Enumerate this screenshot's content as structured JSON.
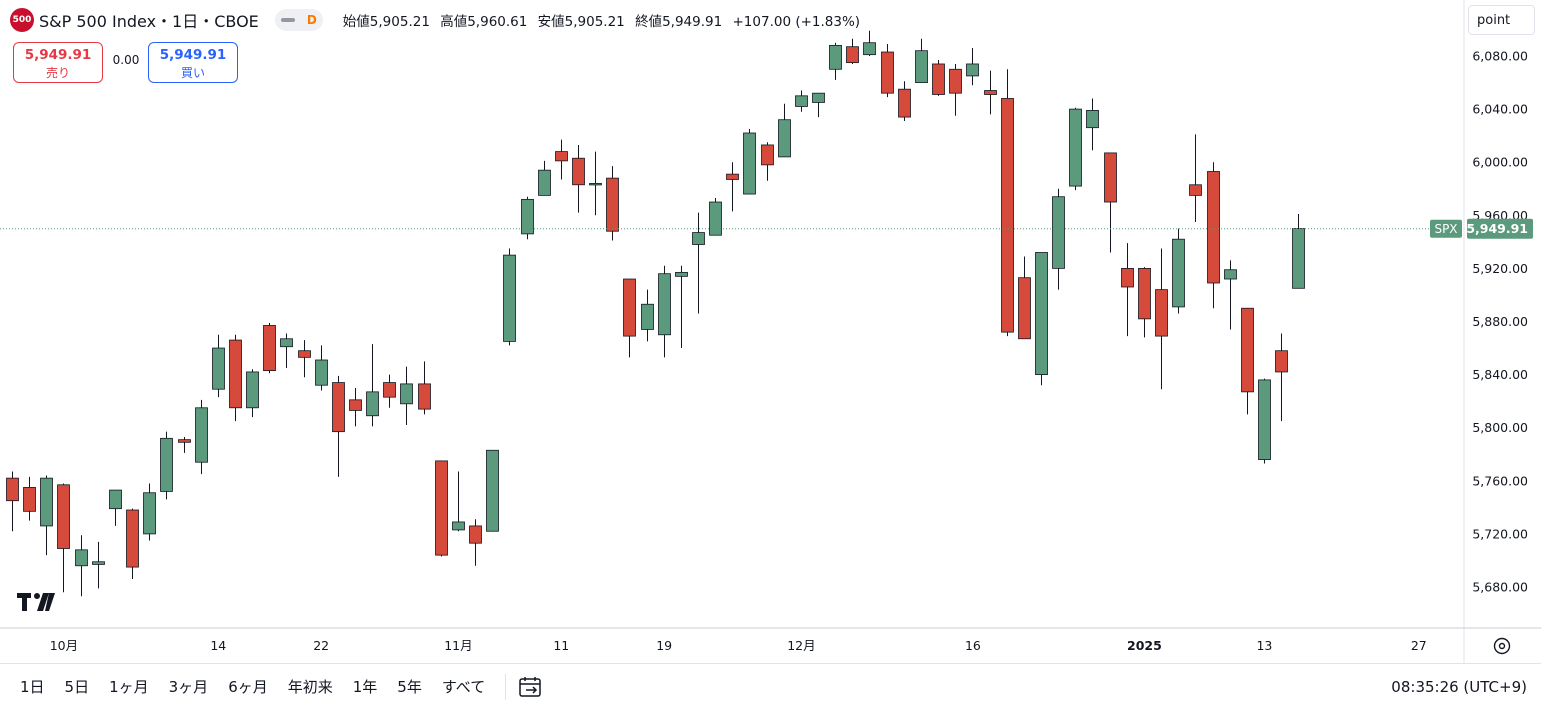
{
  "header": {
    "symbol_badge": "500",
    "title": "S&P 500 Index・1日・CBOE",
    "timeframe_letter": "D",
    "ohlc": {
      "open_label": "始値",
      "open": "5,905.21",
      "high_label": "高値",
      "high": "5,960.61",
      "low_label": "安値",
      "low": "5,905.21",
      "close_label": "終値",
      "close": "5,949.91",
      "change": "+107.00 (+1.83%)"
    }
  },
  "trade": {
    "sell_price": "5,949.91",
    "sell_label": "売り",
    "spread": "0.00",
    "buy_price": "5,949.91",
    "buy_label": "買い"
  },
  "scale_mode": "point",
  "colors": {
    "up": "#5b9a7d",
    "down": "#d64a3c",
    "last_price": "#5b9a7d"
  },
  "bottom": {
    "ranges": [
      "1日",
      "5日",
      "1ヶ月",
      "3ヶ月",
      "6ヶ月",
      "年初来",
      "1年",
      "5年",
      "すべて"
    ],
    "goto_icon": "calendar-goto-icon",
    "clock": "08:35:26 (UTC+9)"
  },
  "chart_data": {
    "type": "candlestick",
    "symbol": "SPX",
    "last_price": 5949.91,
    "last_price_label": "5,949.91",
    "ylim": [
      5650,
      6100
    ],
    "y_ticks": [
      5680,
      5720,
      5760,
      5800,
      5840,
      5880,
      5920,
      5960,
      6000,
      6040,
      6080
    ],
    "y_tick_labels": [
      "5,680.00",
      "5,720.00",
      "5,760.00",
      "5,800.00",
      "5,840.00",
      "5,880.00",
      "5,920.00",
      "5,960.00",
      "6,000.00",
      "6,040.00",
      "6,080.00"
    ],
    "x_labels": [
      {
        "index": 3,
        "text": "10月",
        "bold": false
      },
      {
        "index": 12,
        "text": "14",
        "bold": false
      },
      {
        "index": 18,
        "text": "22",
        "bold": false
      },
      {
        "index": 26,
        "text": "11月",
        "bold": false
      },
      {
        "index": 32,
        "text": "11",
        "bold": false
      },
      {
        "index": 38,
        "text": "19",
        "bold": false
      },
      {
        "index": 46,
        "text": "12月",
        "bold": false
      },
      {
        "index": 56,
        "text": "16",
        "bold": false
      },
      {
        "index": 66,
        "text": "2025",
        "bold": true
      },
      {
        "index": 73,
        "text": "13",
        "bold": false
      },
      {
        "index": 82,
        "text": "27",
        "bold": false
      }
    ],
    "candles": [
      {
        "o": 5762,
        "h": 5767,
        "l": 5722,
        "c": 5745
      },
      {
        "o": 5755,
        "h": 5763,
        "l": 5730,
        "c": 5737
      },
      {
        "o": 5726,
        "h": 5764,
        "l": 5704,
        "c": 5762
      },
      {
        "o": 5757,
        "h": 5758,
        "l": 5676,
        "c": 5709
      },
      {
        "o": 5696,
        "h": 5719,
        "l": 5673,
        "c": 5708
      },
      {
        "o": 5697,
        "h": 5714,
        "l": 5679,
        "c": 5699
      },
      {
        "o": 5739,
        "h": 5753,
        "l": 5726,
        "c": 5753
      },
      {
        "o": 5738,
        "h": 5739,
        "l": 5686,
        "c": 5695
      },
      {
        "o": 5720,
        "h": 5758,
        "l": 5715,
        "c": 5751
      },
      {
        "o": 5752,
        "h": 5797,
        "l": 5746,
        "c": 5792
      },
      {
        "o": 5791,
        "h": 5793,
        "l": 5781,
        "c": 5789
      },
      {
        "o": 5774,
        "h": 5821,
        "l": 5765,
        "c": 5815
      },
      {
        "o": 5829,
        "h": 5870,
        "l": 5823,
        "c": 5860
      },
      {
        "o": 5866,
        "h": 5870,
        "l": 5805,
        "c": 5815
      },
      {
        "o": 5815,
        "h": 5844,
        "l": 5808,
        "c": 5842
      },
      {
        "o": 5877,
        "h": 5879,
        "l": 5841,
        "c": 5843
      },
      {
        "o": 5861,
        "h": 5871,
        "l": 5845,
        "c": 5867
      },
      {
        "o": 5858,
        "h": 5866,
        "l": 5838,
        "c": 5853
      },
      {
        "o": 5832,
        "h": 5862,
        "l": 5828,
        "c": 5851
      },
      {
        "o": 5834,
        "h": 5839,
        "l": 5763,
        "c": 5797
      },
      {
        "o": 5821,
        "h": 5830,
        "l": 5801,
        "c": 5813
      },
      {
        "o": 5809,
        "h": 5863,
        "l": 5801,
        "c": 5827
      },
      {
        "o": 5834,
        "h": 5840,
        "l": 5815,
        "c": 5823
      },
      {
        "o": 5818,
        "h": 5846,
        "l": 5802,
        "c": 5833
      },
      {
        "o": 5833,
        "h": 5850,
        "l": 5810,
        "c": 5814
      },
      {
        "o": 5775,
        "h": 5775,
        "l": 5703,
        "c": 5704
      },
      {
        "o": 5723,
        "h": 5767,
        "l": 5722,
        "c": 5729
      },
      {
        "o": 5726,
        "h": 5731,
        "l": 5696,
        "c": 5713
      },
      {
        "o": 5722,
        "h": 5783,
        "l": 5722,
        "c": 5783
      },
      {
        "o": 5865,
        "h": 5935,
        "l": 5862,
        "c": 5930
      },
      {
        "o": 5946,
        "h": 5974,
        "l": 5942,
        "c": 5972
      },
      {
        "o": 5975,
        "h": 6001,
        "l": 5975,
        "c": 5994
      },
      {
        "o": 6008,
        "h": 6017,
        "l": 5987,
        "c": 6001
      },
      {
        "o": 6003,
        "h": 6013,
        "l": 5962,
        "c": 5983
      },
      {
        "o": 5984,
        "h": 6008,
        "l": 5960,
        "c": 5984
      },
      {
        "o": 5988,
        "h": 5997,
        "l": 5941,
        "c": 5948
      },
      {
        "o": 5912,
        "h": 5912,
        "l": 5853,
        "c": 5869
      },
      {
        "o": 5874,
        "h": 5904,
        "l": 5865,
        "c": 5893
      },
      {
        "o": 5870,
        "h": 5922,
        "l": 5853,
        "c": 5916
      },
      {
        "o": 5914,
        "h": 5922,
        "l": 5860,
        "c": 5917
      },
      {
        "o": 5938,
        "h": 5962,
        "l": 5886,
        "c": 5947
      },
      {
        "o": 5945,
        "h": 5973,
        "l": 5945,
        "c": 5970
      },
      {
        "o": 5991,
        "h": 6000,
        "l": 5963,
        "c": 5987
      },
      {
        "o": 5976,
        "h": 6025,
        "l": 5976,
        "c": 6022
      },
      {
        "o": 6013,
        "h": 6015,
        "l": 5986,
        "c": 5998
      },
      {
        "o": 6004,
        "h": 6044,
        "l": 6004,
        "c": 6032
      },
      {
        "o": 6042,
        "h": 6054,
        "l": 6038,
        "c": 6050
      },
      {
        "o": 6045,
        "h": 6052,
        "l": 6034,
        "c": 6052
      },
      {
        "o": 6070,
        "h": 6090,
        "l": 6062,
        "c": 6088
      },
      {
        "o": 6087,
        "h": 6093,
        "l": 6074,
        "c": 6075
      },
      {
        "o": 6081,
        "h": 6099,
        "l": 6080,
        "c": 6090
      },
      {
        "o": 6083,
        "h": 6089,
        "l": 6049,
        "c": 6052
      },
      {
        "o": 6055,
        "h": 6061,
        "l": 6031,
        "c": 6034
      },
      {
        "o": 6060,
        "h": 6093,
        "l": 6060,
        "c": 6084
      },
      {
        "o": 6074,
        "h": 6077,
        "l": 6050,
        "c": 6051
      },
      {
        "o": 6070,
        "h": 6074,
        "l": 6035,
        "c": 6052
      },
      {
        "o": 6065,
        "h": 6086,
        "l": 6058,
        "c": 6074
      },
      {
        "o": 6054,
        "h": 6069,
        "l": 6036,
        "c": 6051
      },
      {
        "o": 6048,
        "h": 6070,
        "l": 5869,
        "c": 5872
      },
      {
        "o": 5913,
        "h": 5929,
        "l": 5868,
        "c": 5867
      },
      {
        "o": 5840,
        "h": 5932,
        "l": 5832,
        "c": 5932
      },
      {
        "o": 5920,
        "h": 5980,
        "l": 5904,
        "c": 5974
      },
      {
        "o": 5982,
        "h": 6041,
        "l": 5979,
        "c": 6040
      },
      {
        "o": 6026,
        "h": 6048,
        "l": 6009,
        "c": 6039
      },
      {
        "o": 6007,
        "h": 6007,
        "l": 5932,
        "c": 5970
      },
      {
        "o": 5920,
        "h": 5939,
        "l": 5869,
        "c": 5906
      },
      {
        "o": 5920,
        "h": 5921,
        "l": 5868,
        "c": 5882
      },
      {
        "o": 5904,
        "h": 5935,
        "l": 5829,
        "c": 5869
      },
      {
        "o": 5891,
        "h": 5950,
        "l": 5886,
        "c": 5942
      },
      {
        "o": 5983,
        "h": 6021,
        "l": 5955,
        "c": 5975
      },
      {
        "o": 5993,
        "h": 6000,
        "l": 5890,
        "c": 5909
      },
      {
        "o": 5912,
        "h": 5926,
        "l": 5874,
        "c": 5919
      },
      {
        "o": 5890,
        "h": 5890,
        "l": 5810,
        "c": 5827
      },
      {
        "o": 5776,
        "h": 5837,
        "l": 5773,
        "c": 5836
      },
      {
        "o": 5858,
        "h": 5871,
        "l": 5805,
        "c": 5842
      },
      {
        "o": 5905,
        "h": 5961,
        "l": 5905,
        "c": 5950
      }
    ]
  }
}
